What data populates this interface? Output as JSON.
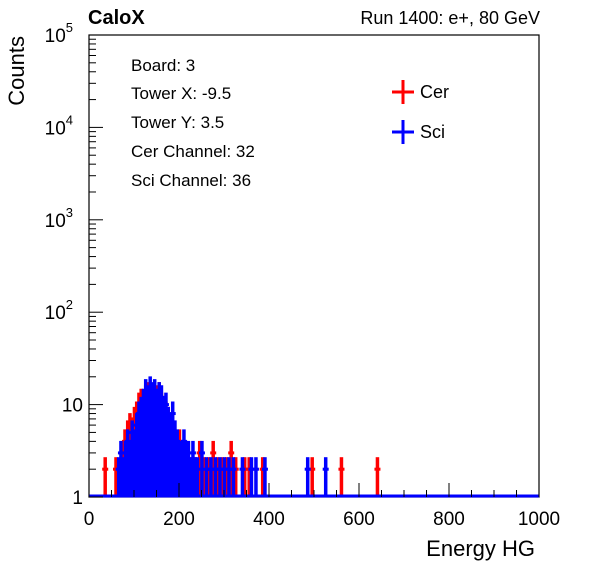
{
  "header": {
    "left": "CaloX",
    "right": "Run 1400: e+, 80 GeV"
  },
  "info_box": {
    "lines": [
      "Board: 3",
      "Tower X: -9.5",
      "Tower Y: 3.5",
      "Cer Channel: 32",
      "Sci Channel: 36"
    ]
  },
  "chart_data": {
    "type": "bar",
    "title": "",
    "xlabel": "Energy HG",
    "ylabel": "Counts",
    "xlim": [
      0,
      1000
    ],
    "ylim": [
      1,
      100000
    ],
    "yscale": "log",
    "grid": false,
    "legend_position": "top-right",
    "x_ticks": [
      {
        "value": 0,
        "label": "0"
      },
      {
        "value": 200,
        "label": "200"
      },
      {
        "value": 400,
        "label": "400"
      },
      {
        "value": 600,
        "label": "600"
      },
      {
        "value": 800,
        "label": "800"
      },
      {
        "value": 1000,
        "label": "1000"
      }
    ],
    "y_ticks": [
      {
        "value": 1,
        "base": "1",
        "exp": ""
      },
      {
        "value": 10,
        "base": "10",
        "exp": ""
      },
      {
        "value": 100,
        "base": "10",
        "exp": "2"
      },
      {
        "value": 1000,
        "base": "10",
        "exp": "3"
      },
      {
        "value": 10000,
        "base": "10",
        "exp": "4"
      },
      {
        "value": 100000,
        "base": "10",
        "exp": "5"
      }
    ],
    "series": [
      {
        "name": "Cer",
        "color": "#ff0000",
        "points": [
          [
            36,
            2
          ],
          [
            60,
            2
          ],
          [
            74,
            3
          ],
          [
            80,
            4
          ],
          [
            86,
            5
          ],
          [
            91,
            6
          ],
          [
            96,
            5
          ],
          [
            101,
            7
          ],
          [
            106,
            8
          ],
          [
            111,
            10
          ],
          [
            116,
            11
          ],
          [
            121,
            9
          ],
          [
            126,
            12
          ],
          [
            131,
            13
          ],
          [
            136,
            10
          ],
          [
            141,
            8
          ],
          [
            146,
            11
          ],
          [
            151,
            12
          ],
          [
            156,
            13
          ],
          [
            161,
            10
          ],
          [
            166,
            9
          ],
          [
            171,
            8
          ],
          [
            176,
            7
          ],
          [
            181,
            6
          ],
          [
            186,
            5
          ],
          [
            191,
            4
          ],
          [
            196,
            3
          ],
          [
            201,
            4
          ],
          [
            206,
            3
          ],
          [
            211,
            2
          ],
          [
            216,
            3
          ],
          [
            221,
            2
          ],
          [
            226,
            2
          ],
          [
            236,
            2
          ],
          [
            246,
            3
          ],
          [
            256,
            2
          ],
          [
            266,
            2
          ],
          [
            276,
            3
          ],
          [
            286,
            2
          ],
          [
            296,
            2
          ],
          [
            306,
            2
          ],
          [
            316,
            3
          ],
          [
            326,
            2
          ],
          [
            346,
            2
          ],
          [
            356,
            2
          ],
          [
            386,
            2
          ],
          [
            496,
            2
          ],
          [
            561,
            2
          ],
          [
            641,
            2
          ]
        ]
      },
      {
        "name": "Sci",
        "color": "#0000ff",
        "points": [
          [
            66,
            2
          ],
          [
            71,
            3
          ],
          [
            76,
            2
          ],
          [
            81,
            3
          ],
          [
            86,
            4
          ],
          [
            91,
            3
          ],
          [
            96,
            5
          ],
          [
            101,
            4
          ],
          [
            106,
            6
          ],
          [
            111,
            8
          ],
          [
            116,
            9
          ],
          [
            121,
            11
          ],
          [
            126,
            14
          ],
          [
            131,
            12
          ],
          [
            136,
            15
          ],
          [
            141,
            13
          ],
          [
            146,
            14
          ],
          [
            151,
            11
          ],
          [
            156,
            13
          ],
          [
            161,
            12
          ],
          [
            166,
            9
          ],
          [
            171,
            10
          ],
          [
            176,
            7
          ],
          [
            181,
            6
          ],
          [
            186,
            8
          ],
          [
            191,
            5
          ],
          [
            196,
            4
          ],
          [
            201,
            3
          ],
          [
            206,
            3
          ],
          [
            211,
            4
          ],
          [
            216,
            3
          ],
          [
            221,
            3
          ],
          [
            226,
            2
          ],
          [
            231,
            3
          ],
          [
            236,
            2
          ],
          [
            241,
            2
          ],
          [
            251,
            3
          ],
          [
            261,
            2
          ],
          [
            271,
            2
          ],
          [
            281,
            2
          ],
          [
            291,
            2
          ],
          [
            301,
            2
          ],
          [
            311,
            2
          ],
          [
            321,
            2
          ],
          [
            341,
            2
          ],
          [
            361,
            2
          ],
          [
            371,
            2
          ],
          [
            391,
            2
          ],
          [
            486,
            2
          ],
          [
            526,
            2
          ]
        ]
      }
    ]
  }
}
